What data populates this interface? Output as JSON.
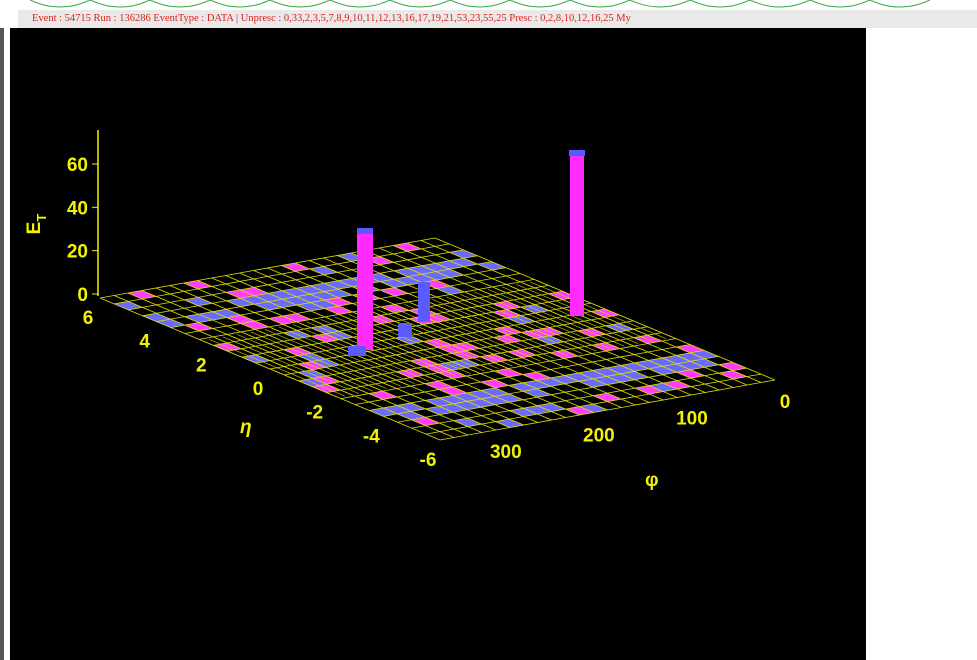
{
  "header": {
    "text": "Event : 54715  Run : 136286  EventType : DATA | Unpresc : 0,33,2,3,5,7,8,9,10,11,12,13,16,17,19,21,53,23,55,25  Presc : 0,2,8,10,12,16,25 My"
  },
  "plot": {
    "z_axis_label": "E",
    "z_axis_label_sub": "T",
    "z_ticks": [
      0,
      20,
      40,
      60
    ],
    "eta_label": "η",
    "eta_ticks": [
      6,
      4,
      2,
      0,
      -2,
      -4,
      -6
    ],
    "phi_label": "φ",
    "phi_ticks": [
      300,
      200,
      100,
      0
    ]
  }
}
